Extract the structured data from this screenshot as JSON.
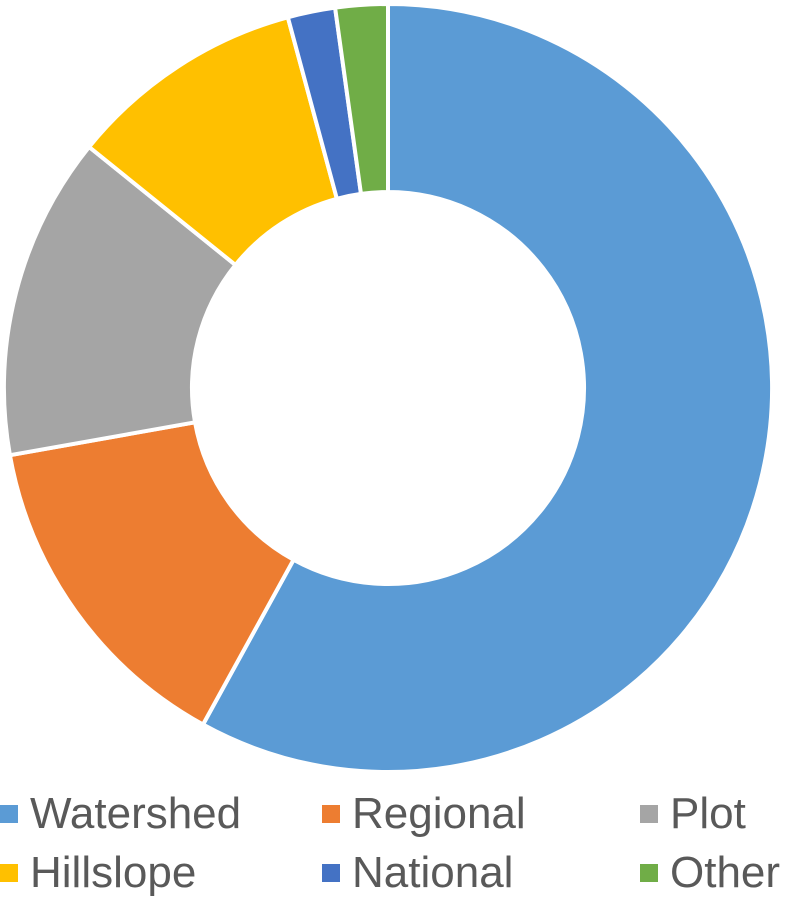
{
  "chart_data": {
    "type": "donut",
    "title": "",
    "legend_position": "bottom",
    "categories": [
      "Watershed",
      "Regional",
      "Plot",
      "Hillslope",
      "National",
      "Other"
    ],
    "values": [
      58.0,
      14.2,
      13.6,
      10.0,
      2.0,
      2.2
    ],
    "unit": "%",
    "colors": [
      "#5B9BD5",
      "#ED7D31",
      "#A5A5A5",
      "#FFC000",
      "#4472C4",
      "#70AD47"
    ]
  }
}
